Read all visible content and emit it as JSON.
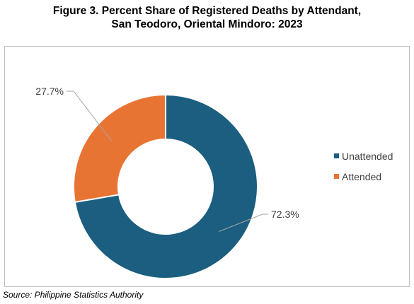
{
  "title_line1": "Figure 3. Percent Share of Registered Deaths by Attendant,",
  "title_line2": "San Teodoro, Oriental Mindoro: 2023",
  "source": "Source: Philippine Statistics Authority",
  "chart_data": {
    "type": "pie",
    "style": "donut",
    "title": "Figure 3. Percent Share of Registered Deaths by Attendant, San Teodoro, Oriental Mindoro: 2023",
    "categories": [
      "Unattended",
      "Attended"
    ],
    "values": [
      72.3,
      27.7
    ],
    "labels": [
      "72.3%",
      "27.7%"
    ],
    "colors": [
      "#1b5e80",
      "#e87434"
    ],
    "legend": "right"
  }
}
